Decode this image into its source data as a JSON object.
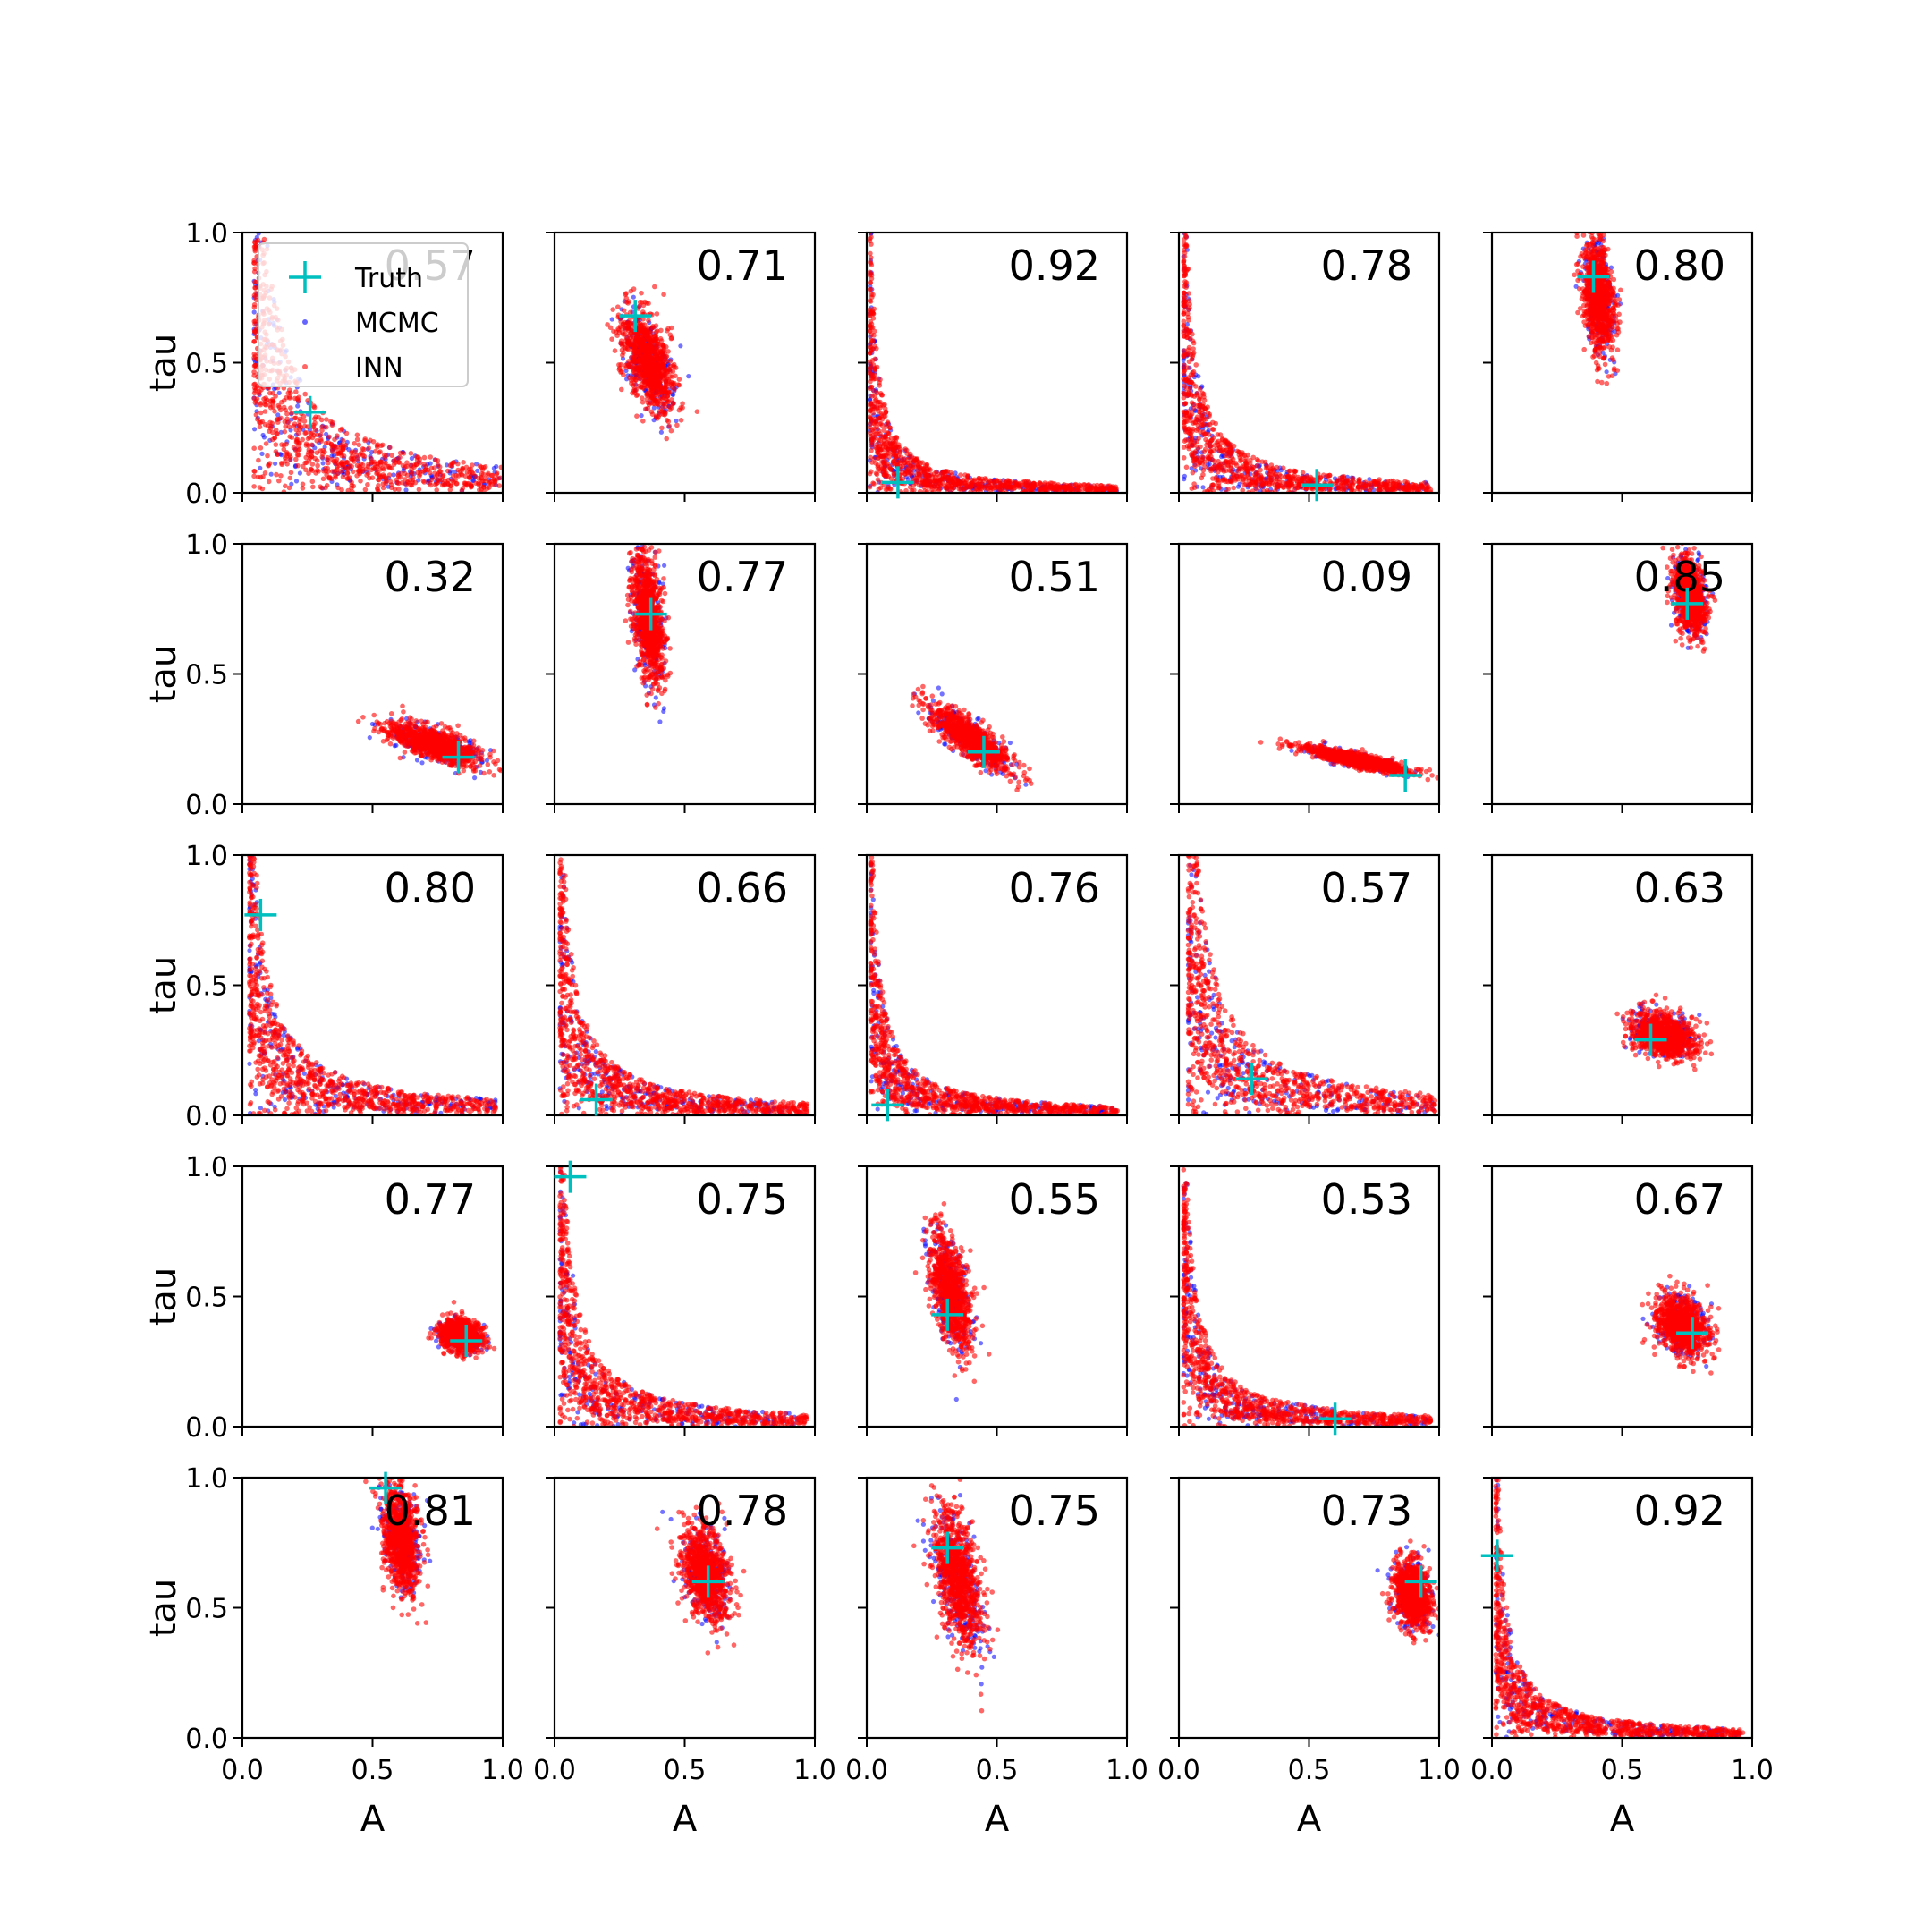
{
  "chart_data": {
    "type": "scatter",
    "title": "",
    "layout": "5x5 grid of panels",
    "xlabel": "A",
    "ylabel": "tau",
    "xlim": [
      0,
      1
    ],
    "ylim": [
      0,
      1
    ],
    "xticks": [
      "0.0",
      "0.5",
      "1.0"
    ],
    "yticks": [
      "0.0",
      "0.5",
      "1.0"
    ],
    "grid": false,
    "legend": {
      "placement": "top-left of first panel",
      "entries": [
        {
          "label": "Truth",
          "color": "#00bfbf",
          "marker": "+"
        },
        {
          "label": "MCMC",
          "color": "#0000ff",
          "marker": "."
        },
        {
          "label": "INN",
          "color": "#ff0000",
          "marker": "."
        }
      ]
    },
    "colors": {
      "truth": "#00bfbf",
      "mcmc": "#0000ff",
      "inn": "#ff0000"
    },
    "panels": [
      {
        "label": "0.57",
        "truth": [
          0.26,
          0.31
        ],
        "shape": "curve",
        "k": 0.075
      },
      {
        "label": "0.71",
        "truth": [
          0.31,
          0.68
        ],
        "shape": "blob",
        "center": [
          0.36,
          0.5
        ],
        "spread": [
          0.1,
          0.2
        ],
        "rho": -0.55
      },
      {
        "label": "0.92",
        "truth": [
          0.12,
          0.04
        ],
        "shape": "curve",
        "k": 0.02
      },
      {
        "label": "0.78",
        "truth": [
          0.53,
          0.03
        ],
        "shape": "curve",
        "k": 0.03
      },
      {
        "label": "0.80",
        "truth": [
          0.39,
          0.83
        ],
        "shape": "blob",
        "center": [
          0.41,
          0.76
        ],
        "spread": [
          0.06,
          0.22
        ],
        "rho": -0.3
      },
      {
        "label": "0.32",
        "truth": [
          0.83,
          0.18
        ],
        "shape": "blob",
        "center": [
          0.74,
          0.23
        ],
        "spread": [
          0.18,
          0.08
        ],
        "rho": -0.7
      },
      {
        "label": "0.77",
        "truth": [
          0.37,
          0.73
        ],
        "shape": "blob",
        "center": [
          0.36,
          0.72
        ],
        "spread": [
          0.06,
          0.25
        ],
        "rho": -0.4
      },
      {
        "label": "0.51",
        "truth": [
          0.45,
          0.2
        ],
        "shape": "blob",
        "center": [
          0.4,
          0.25
        ],
        "spread": [
          0.15,
          0.12
        ],
        "rho": -0.8
      },
      {
        "label": "0.09",
        "truth": [
          0.87,
          0.11
        ],
        "shape": "blob",
        "center": [
          0.68,
          0.17
        ],
        "spread": [
          0.2,
          0.05
        ],
        "rho": -0.85
      },
      {
        "label": "0.85",
        "truth": [
          0.75,
          0.77
        ],
        "shape": "blob",
        "center": [
          0.76,
          0.8
        ],
        "spread": [
          0.06,
          0.15
        ],
        "rho": -0.3
      },
      {
        "label": "0.80",
        "truth": [
          0.07,
          0.77
        ],
        "shape": "curve",
        "k": 0.045
      },
      {
        "label": "0.66",
        "truth": [
          0.16,
          0.06
        ],
        "shape": "curve",
        "k": 0.035
      },
      {
        "label": "0.76",
        "truth": [
          0.08,
          0.04
        ],
        "shape": "curve",
        "k": 0.025
      },
      {
        "label": "0.57",
        "truth": [
          0.28,
          0.14
        ],
        "shape": "curve",
        "k": 0.06
      },
      {
        "label": "0.63",
        "truth": [
          0.61,
          0.29
        ],
        "shape": "blob",
        "center": [
          0.66,
          0.31
        ],
        "spread": [
          0.12,
          0.09
        ],
        "rho": -0.35
      },
      {
        "label": "0.77",
        "truth": [
          0.86,
          0.33
        ],
        "shape": "blob",
        "center": [
          0.84,
          0.35
        ],
        "spread": [
          0.08,
          0.06
        ],
        "rho": -0.2
      },
      {
        "label": "0.75",
        "truth": [
          0.06,
          0.96
        ],
        "shape": "curve",
        "k": 0.035
      },
      {
        "label": "0.55",
        "truth": [
          0.31,
          0.43
        ],
        "shape": "blob",
        "center": [
          0.32,
          0.52
        ],
        "spread": [
          0.08,
          0.22
        ],
        "rho": -0.55
      },
      {
        "label": "0.53",
        "truth": [
          0.6,
          0.03
        ],
        "shape": "curve",
        "k": 0.03
      },
      {
        "label": "0.67",
        "truth": [
          0.77,
          0.36
        ],
        "shape": "blob",
        "center": [
          0.73,
          0.39
        ],
        "spread": [
          0.1,
          0.11
        ],
        "rho": -0.25
      },
      {
        "label": "0.81",
        "truth": [
          0.55,
          0.96
        ],
        "shape": "blob",
        "center": [
          0.61,
          0.76
        ],
        "spread": [
          0.07,
          0.2
        ],
        "rho": -0.3
      },
      {
        "label": "0.78",
        "truth": [
          0.59,
          0.6
        ],
        "shape": "blob",
        "center": [
          0.58,
          0.63
        ],
        "spread": [
          0.09,
          0.18
        ],
        "rho": -0.3
      },
      {
        "label": "0.75",
        "truth": [
          0.31,
          0.73
        ],
        "shape": "blob",
        "center": [
          0.35,
          0.6
        ],
        "spread": [
          0.09,
          0.26
        ],
        "rho": -0.5
      },
      {
        "label": "0.73",
        "truth": [
          0.93,
          0.6
        ],
        "shape": "blob",
        "center": [
          0.9,
          0.55
        ],
        "spread": [
          0.07,
          0.13
        ],
        "rho": -0.2
      },
      {
        "label": "0.92",
        "truth": [
          0.02,
          0.7
        ],
        "shape": "curve",
        "k": 0.025
      }
    ]
  }
}
